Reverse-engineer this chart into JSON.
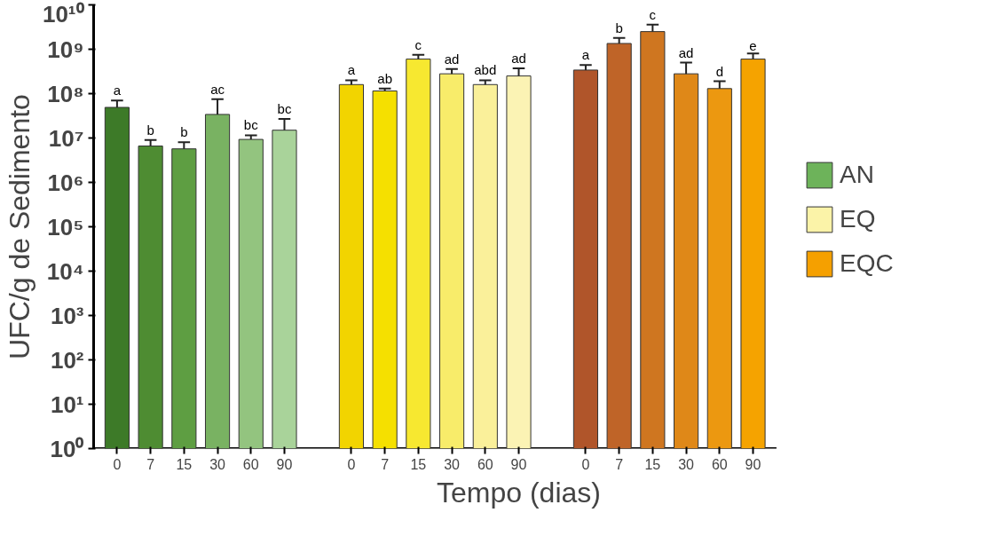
{
  "chart_data": {
    "type": "bar",
    "xlabel": "Tempo (dias)",
    "ylabel": "UFC/g de Sedimento",
    "categories": [
      "0",
      "7",
      "15",
      "30",
      "60",
      "90",
      null,
      "0",
      "7",
      "15",
      "30",
      "60",
      "90",
      null,
      "0",
      "7",
      "15",
      "30",
      "60",
      "90"
    ],
    "log": "y",
    "ylim": [
      1,
      10000000000
    ],
    "yticks": [
      {
        "value": 1,
        "label": "10⁰"
      },
      {
        "value": 10,
        "label": "10¹"
      },
      {
        "value": 100,
        "label": "10²"
      },
      {
        "value": 1000,
        "label": "10³"
      },
      {
        "value": 10000,
        "label": "10⁴"
      },
      {
        "value": 100000,
        "label": "10⁵"
      },
      {
        "value": 1000000,
        "label": "10⁶"
      },
      {
        "value": 10000000,
        "label": "10⁷"
      },
      {
        "value": 100000000,
        "label": "10⁸"
      },
      {
        "value": 1000000000,
        "label": "10⁹"
      },
      {
        "value": 10000000000,
        "label": "10¹⁰"
      }
    ],
    "grid": false,
    "legend": "right",
    "series": [
      {
        "name": "AN",
        "color": "#6db35a",
        "values": [
          49000000,
          6600000,
          5700000,
          34000000,
          9300000,
          15000000,
          null,
          null,
          null,
          null,
          null,
          null,
          null,
          null,
          null,
          null,
          null,
          null,
          null,
          null
        ],
        "errors": [
          [
            49000000,
            70000000
          ],
          [
            6600000,
            9000000
          ],
          [
            5700000,
            8000000
          ],
          [
            34000000,
            75000000
          ],
          [
            9300000,
            11500000
          ],
          [
            15000000,
            27000000
          ],
          null,
          null,
          null,
          null,
          null,
          null,
          null,
          null,
          null,
          null,
          null,
          null,
          null,
          null
        ],
        "colors": [
          "#3d7a28",
          "#4e8c32",
          "#5e9e42",
          "#79b262",
          "#93c47f",
          "#a9d39a",
          null,
          null,
          null,
          null,
          null,
          null,
          null,
          null,
          null,
          null,
          null,
          null,
          null,
          null
        ],
        "value_labels": [
          "a",
          "b",
          "b",
          "ac",
          "bc",
          "bc",
          null,
          null,
          null,
          null,
          null,
          null,
          null,
          null,
          null,
          null,
          null,
          null,
          null,
          null
        ]
      },
      {
        "name": "EQ",
        "color": "#fbf3a8",
        "values": [
          null,
          null,
          null,
          null,
          null,
          null,
          null,
          160000000,
          115000000,
          600000000,
          280000000,
          160000000,
          250000000,
          null,
          null,
          null,
          null,
          null,
          null,
          null
        ],
        "errors": [
          null,
          null,
          null,
          null,
          null,
          null,
          null,
          [
            160000000,
            200000000
          ],
          [
            115000000,
            130000000
          ],
          [
            600000000,
            750000000
          ],
          [
            280000000,
            360000000
          ],
          [
            160000000,
            200000000
          ],
          [
            250000000,
            370000000
          ],
          null,
          null,
          null,
          null,
          null,
          null,
          null
        ],
        "colors": [
          null,
          null,
          null,
          null,
          null,
          null,
          null,
          "#f2d400",
          "#f5e000",
          "#f7e830",
          "#f8ec6a",
          "#faf09a",
          "#fbf3b4",
          null,
          null,
          null,
          null,
          null,
          null,
          null
        ],
        "value_labels": [
          null,
          null,
          null,
          null,
          null,
          null,
          null,
          "a",
          "ab",
          "c",
          "ad",
          "abd",
          "ad",
          null,
          null,
          null,
          null,
          null,
          null,
          null
        ]
      },
      {
        "name": "EQC",
        "color": "#f5a000",
        "values": [
          null,
          null,
          null,
          null,
          null,
          null,
          null,
          null,
          null,
          null,
          null,
          null,
          null,
          null,
          340000000,
          1350000000,
          2500000000,
          280000000,
          130000000,
          600000000
        ],
        "errors": [
          null,
          null,
          null,
          null,
          null,
          null,
          null,
          null,
          null,
          null,
          null,
          null,
          null,
          null,
          [
            340000000,
            440000000
          ],
          [
            1350000000,
            1800000000
          ],
          [
            2500000000,
            3600000000
          ],
          [
            280000000,
            500000000
          ],
          [
            130000000,
            190000000
          ],
          [
            600000000,
            800000000
          ]
        ],
        "colors": [
          null,
          null,
          null,
          null,
          null,
          null,
          null,
          null,
          null,
          null,
          null,
          null,
          null,
          null,
          "#b0552a",
          "#bf6428",
          "#cf7620",
          "#df8818",
          "#ec9810",
          "#f5a300"
        ],
        "value_labels": [
          null,
          null,
          null,
          null,
          null,
          null,
          null,
          null,
          null,
          null,
          null,
          null,
          null,
          null,
          "a",
          "b",
          "c",
          "ad",
          "d",
          "e"
        ]
      }
    ]
  }
}
